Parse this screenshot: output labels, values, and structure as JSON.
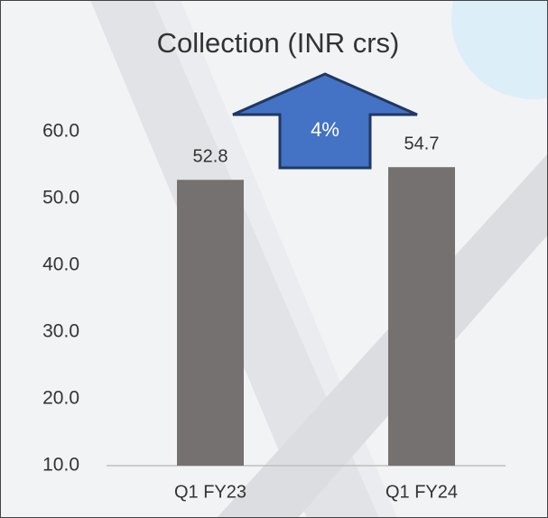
{
  "chart_data": {
    "type": "bar",
    "title": "Collection (INR crs)",
    "categories": [
      "Q1 FY23",
      "Q1 FY24"
    ],
    "values": [
      52.8,
      54.7
    ],
    "color": "#767171",
    "ylim": [
      10,
      60
    ],
    "yticks": [
      {
        "value": 10,
        "label": "10.0"
      },
      {
        "value": 20,
        "label": "20.0"
      },
      {
        "value": 30,
        "label": "30.0"
      },
      {
        "value": 40,
        "label": "40.0"
      },
      {
        "value": 50,
        "label": "50.0"
      },
      {
        "value": 60,
        "label": "60.0"
      }
    ],
    "annotation": "4%",
    "annotation_color": "#4472c4"
  }
}
